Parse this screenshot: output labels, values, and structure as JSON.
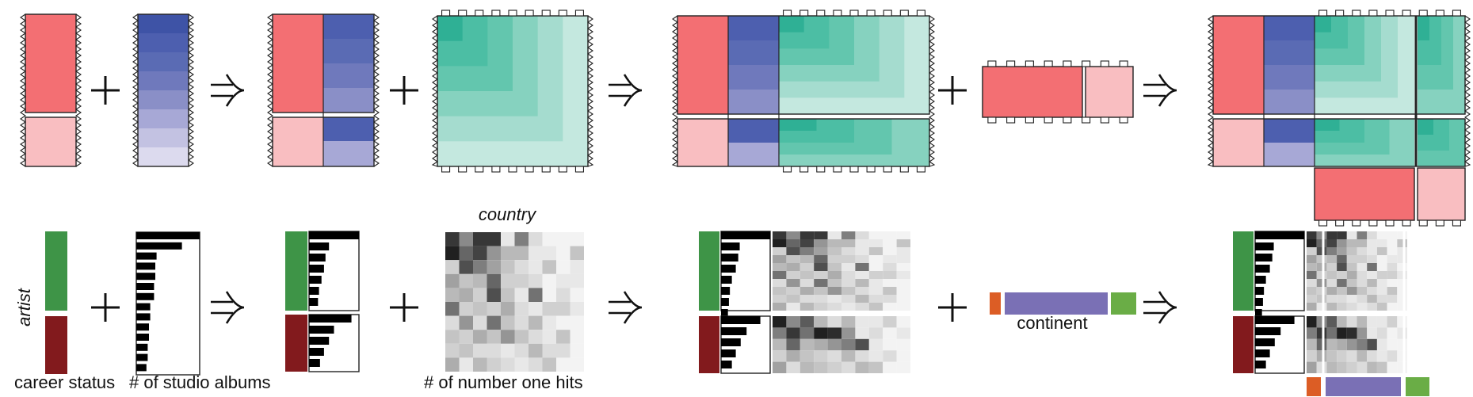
{
  "labels": {
    "artist": "artist",
    "career_status": "career status",
    "studio_albums": "# of studio albums",
    "country": "country",
    "number_one_hits": "# of number one hits",
    "continent": "continent"
  },
  "operators": {
    "plus": "+",
    "implies": "⇒"
  },
  "colors": {
    "red": "#f36f73",
    "pink": "#f9bec1",
    "dark_green": "#3e9447",
    "dark_red": "#821a1d",
    "continent_orange": "#dc5d25",
    "continent_purple": "#7a70b5",
    "continent_green": "#6aad46",
    "blue_ramp": [
      "#3e53a6",
      "#4d5faf",
      "#5a6bb4",
      "#6f79bc",
      "#8a8fc7",
      "#a7a8d6",
      "#c3c2e2",
      "#dcdaee"
    ],
    "teal_ramp": [
      "#2fb095",
      "#4cbea4",
      "#63c6ae",
      "#86d2bf",
      "#a5dccf",
      "#c4e8df"
    ]
  },
  "bar_values": {
    "active": [
      1.0,
      0.72,
      0.42,
      0.36,
      0.32,
      0.3,
      0.26
    ],
    "inactive": [
      0.26,
      0.22,
      0.21,
      0.2,
      0.19,
      0.17,
      0.15
    ],
    "small_active": [
      1.0,
      0.38,
      0.35,
      0.3,
      0.22,
      0.18,
      0.16,
      0.14
    ],
    "small_inactive": [
      0.8,
      0.52,
      0.4,
      0.3,
      0.22
    ]
  },
  "heatmap": {
    "grid": [
      [
        0.85,
        0.5,
        0.85,
        0.85,
        0.1,
        0.55,
        0.15,
        0.05,
        0.05,
        0.05
      ],
      [
        0.95,
        0.65,
        0.8,
        0.45,
        0.3,
        0.3,
        0.1,
        0.1,
        0.05,
        0.25
      ],
      [
        0.2,
        0.75,
        0.55,
        0.4,
        0.25,
        0.15,
        0.1,
        0.25,
        0.05,
        0.1
      ],
      [
        0.4,
        0.25,
        0.3,
        0.65,
        0.2,
        0.2,
        0.15,
        0.05,
        0.1,
        0.1
      ],
      [
        0.3,
        0.35,
        0.2,
        0.75,
        0.25,
        0.1,
        0.6,
        0.05,
        0.15,
        0.05
      ],
      [
        0.6,
        0.2,
        0.25,
        0.2,
        0.35,
        0.15,
        0.1,
        0.2,
        0.2,
        0.1
      ],
      [
        0.15,
        0.45,
        0.15,
        0.6,
        0.25,
        0.15,
        0.3,
        0.1,
        0.05,
        0.05
      ],
      [
        0.25,
        0.2,
        0.35,
        0.25,
        0.45,
        0.25,
        0.15,
        0.1,
        0.25,
        0.05
      ],
      [
        0.2,
        0.25,
        0.15,
        0.15,
        0.1,
        0.15,
        0.3,
        0.15,
        0.15,
        0.05
      ],
      [
        0.35,
        0.1,
        0.3,
        0.2,
        0.15,
        0.1,
        0.15,
        0.25,
        0.05,
        0.05
      ]
    ],
    "grid_b": [
      [
        0.95,
        0.5,
        0.7,
        0.3,
        0.15,
        0.3,
        0.1,
        0.1,
        0.2,
        0.05
      ],
      [
        0.55,
        0.85,
        0.6,
        0.95,
        0.9,
        0.45,
        0.1,
        0.15,
        0.05,
        0.1
      ],
      [
        0.3,
        0.65,
        0.3,
        0.35,
        0.45,
        0.55,
        0.75,
        0.1,
        0.05,
        0.05
      ],
      [
        0.2,
        0.35,
        0.25,
        0.2,
        0.15,
        0.3,
        0.15,
        0.1,
        0.15,
        0.05
      ],
      [
        0.4,
        0.15,
        0.3,
        0.25,
        0.2,
        0.15,
        0.3,
        0.25,
        0.05,
        0.05
      ]
    ]
  }
}
